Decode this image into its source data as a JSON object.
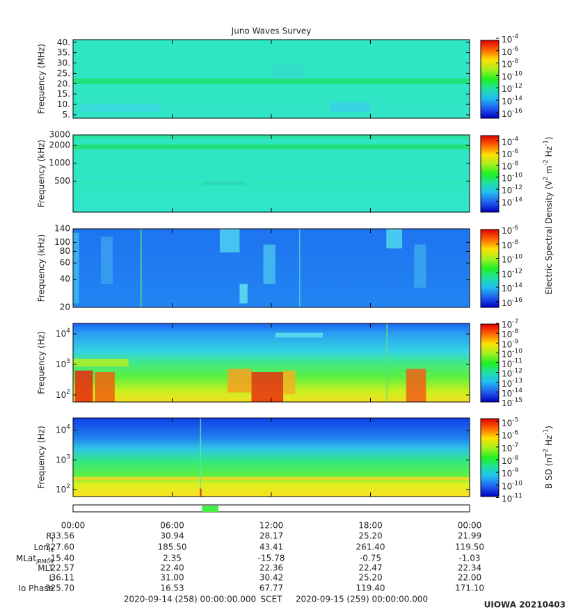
{
  "title": "Juno Waves Survey",
  "chart_data": [
    {
      "type": "spectrogram",
      "ylabel": "Frequency (MHz)",
      "yscale": "linear",
      "ylim": [
        3.3,
        41.3
      ],
      "yticks": [
        {
          "value": 5,
          "label": "5."
        },
        {
          "value": 10,
          "label": "10."
        },
        {
          "value": 15,
          "label": "15."
        },
        {
          "value": 20,
          "label": "20."
        },
        {
          "value": 25,
          "label": "25."
        },
        {
          "value": 30,
          "label": "30."
        },
        {
          "value": 35,
          "label": "35."
        },
        {
          "value": 40,
          "label": "40."
        }
      ],
      "cscale": "log",
      "clim": [
        1.2e-17,
        6e-05
      ],
      "cticks": [
        {
          "value": 0.0001,
          "label": "10",
          "exp": "-4"
        },
        {
          "value": 1e-06,
          "label": "10",
          "exp": "-6"
        },
        {
          "value": 1e-08,
          "label": "10",
          "exp": "-8"
        },
        {
          "value": 1e-10,
          "label": "10",
          "exp": "-10"
        },
        {
          "value": 1e-12,
          "label": "10",
          "exp": "-12"
        },
        {
          "value": 1e-14,
          "label": "10",
          "exp": "-14"
        },
        {
          "value": 1e-16,
          "label": "10",
          "exp": "-16"
        }
      ]
    },
    {
      "type": "spectrogram",
      "ylabel": "Frequency (kHz)",
      "yscale": "log",
      "ylim": [
        150,
        3000
      ],
      "yticks": [
        500,
        1000,
        2000,
        3000
      ],
      "cscale": "log",
      "clim": [
        1.6e-16,
        0.001
      ],
      "cticks": [
        {
          "value": 0.0001,
          "label": "10",
          "exp": "-4"
        },
        {
          "value": 1e-06,
          "label": "10",
          "exp": "-6"
        },
        {
          "value": 1e-08,
          "label": "10",
          "exp": "-8"
        },
        {
          "value": 1e-10,
          "label": "10",
          "exp": "-10"
        },
        {
          "value": 1e-12,
          "label": "10",
          "exp": "-12"
        },
        {
          "value": 1e-14,
          "label": "10",
          "exp": "-14"
        }
      ],
      "clabel": [
        "Electric Spectral Density (V",
        "2",
        " m",
        "-2",
        " Hz",
        "-1",
        ")"
      ]
    },
    {
      "type": "spectrogram",
      "ylabel": "Frequency (kHz)",
      "yscale": "log",
      "ylim": [
        20,
        140
      ],
      "yticks": [
        20,
        40,
        60,
        80,
        100,
        140
      ],
      "cscale": "log",
      "clim": [
        1.6e-17,
        1.3e-06
      ],
      "cticks": [
        {
          "value": 1e-06,
          "label": "10",
          "exp": "-6"
        },
        {
          "value": 1e-08,
          "label": "10",
          "exp": "-8"
        },
        {
          "value": 1e-10,
          "label": "10",
          "exp": "-10"
        },
        {
          "value": 1e-12,
          "label": "10",
          "exp": "-12"
        },
        {
          "value": 1e-14,
          "label": "10",
          "exp": "-14"
        },
        {
          "value": 1e-16,
          "label": "10",
          "exp": "-16"
        }
      ]
    },
    {
      "type": "spectrogram",
      "ylabel": "Frequency (Hz)",
      "yscale": "log",
      "ylim": [
        59,
        22000
      ],
      "yticks": [
        {
          "value": 100,
          "label": "10",
          "exp": "2"
        },
        {
          "value": 1000,
          "label": "10",
          "exp": "3"
        },
        {
          "value": 10000,
          "label": "10",
          "exp": "4"
        }
      ],
      "cscale": "log",
      "clim": [
        1e-15,
        1e-07
      ],
      "cticks": [
        {
          "value": 1e-07,
          "label": "10",
          "exp": "-7"
        },
        {
          "value": 1e-08,
          "label": "10",
          "exp": "-8"
        },
        {
          "value": 1e-09,
          "label": "10",
          "exp": "-9"
        },
        {
          "value": 1e-10,
          "label": "10",
          "exp": "-10"
        },
        {
          "value": 1e-11,
          "label": "10",
          "exp": "-11"
        },
        {
          "value": 1e-12,
          "label": "10",
          "exp": "-12"
        },
        {
          "value": 1e-13,
          "label": "10",
          "exp": "-13"
        },
        {
          "value": 1e-14,
          "label": "10",
          "exp": "-14"
        },
        {
          "value": 1e-15,
          "label": "10",
          "exp": "-15"
        }
      ]
    },
    {
      "type": "spectrogram",
      "ylabel": "Frequency (Hz)",
      "yscale": "log",
      "ylim": [
        58,
        26000
      ],
      "yticks": [
        {
          "value": 100,
          "label": "10",
          "exp": "2"
        },
        {
          "value": 1000,
          "label": "10",
          "exp": "3"
        },
        {
          "value": 10000,
          "label": "10",
          "exp": "4"
        }
      ],
      "cscale": "log",
      "clim": [
        1.2e-11,
        2e-05
      ],
      "cticks": [
        {
          "value": 1e-05,
          "label": "10",
          "exp": "-5"
        },
        {
          "value": 1e-06,
          "label": "10",
          "exp": "-6"
        },
        {
          "value": 1e-07,
          "label": "10",
          "exp": "-7"
        },
        {
          "value": 1e-08,
          "label": "10",
          "exp": "-8"
        },
        {
          "value": 1e-09,
          "label": "10",
          "exp": "-9"
        },
        {
          "value": 1e-10,
          "label": "10",
          "exp": "-10"
        },
        {
          "value": 1e-11,
          "label": "10",
          "exp": "-11"
        }
      ],
      "clabel": [
        "B SD (nT",
        "2",
        " Hz",
        "-1",
        ")"
      ]
    }
  ],
  "time_axis": {
    "xlim": [
      0,
      24
    ],
    "xticks": [
      {
        "value": 0,
        "label": "00:00"
      },
      {
        "value": 6,
        "label": "06:00"
      },
      {
        "value": 12,
        "label": "12:00"
      },
      {
        "value": 18,
        "label": "18:00"
      },
      {
        "value": 24,
        "label": "00:00"
      }
    ]
  },
  "coverage": {
    "start": 7.8,
    "end": 8.8,
    "color": "#44ee44"
  },
  "ephemeris": [
    {
      "label": "R",
      "sub": "J",
      "values": [
        "33.56",
        "30.94",
        "28.17",
        "25.20",
        "21.99"
      ]
    },
    {
      "label": "Lon",
      "sub": "III",
      "values": [
        "327.60",
        "185.50",
        "43.41",
        "261.40",
        "119.50"
      ]
    },
    {
      "label": "MLat",
      "sub": "JRM09",
      "values": [
        "-15.40",
        "2.35",
        "-15.78",
        "-0.75",
        "-1.03"
      ]
    },
    {
      "label": "MLT",
      "values": [
        "22.57",
        "22.40",
        "22.36",
        "22.47",
        "22.34"
      ]
    },
    {
      "label": "L",
      "values": [
        "36.11",
        "31.00",
        "30.42",
        "25.20",
        "22.00"
      ]
    },
    {
      "label": "Io Phase",
      "values": [
        "325.70",
        "16.53",
        "67.77",
        "119.40",
        "171.10"
      ]
    }
  ],
  "footer": {
    "start": "2020-09-14 (258) 00:00:00.000",
    "middle": "SCET",
    "end": "2020-09-15 (259) 00:00:00.000",
    "credit": "UIOWA 20210403"
  }
}
